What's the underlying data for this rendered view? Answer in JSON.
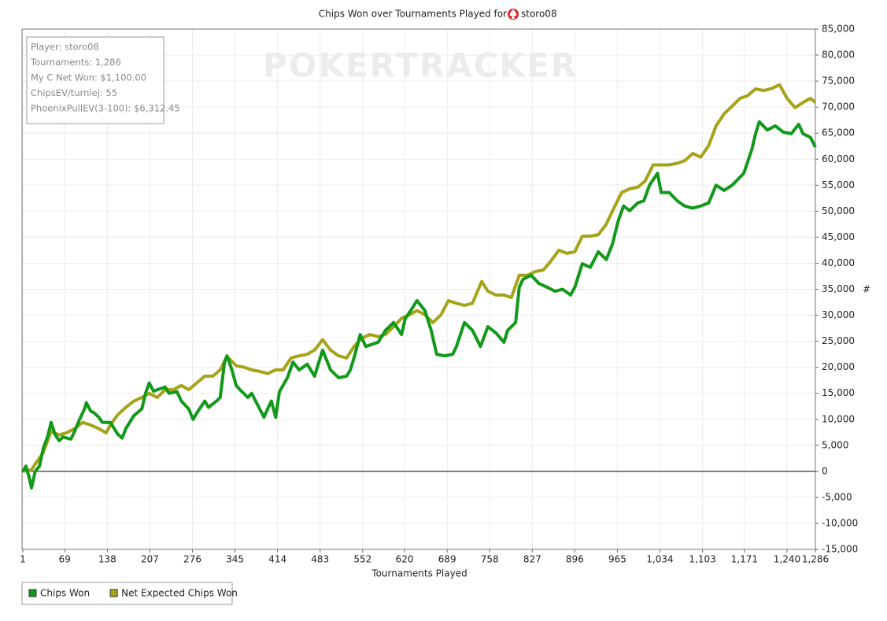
{
  "chart_data": {
    "type": "line",
    "title": "Chips Won over Tournaments Played for",
    "player": "storo08",
    "watermark": "POKERTRACKER",
    "info_lines": [
      "Player: storo08",
      "Tournaments: 1,286",
      "My C Net Won: $1,100.00",
      "ChipsEV/turniej: 55",
      "PhoenixPullEV(3-100): $6,312.45"
    ],
    "x_label": "Tournaments Played",
    "y_label": "#",
    "xlim": [
      1,
      1286
    ],
    "ylim": [
      -15000,
      85000
    ],
    "xticks": [
      1,
      69,
      138,
      207,
      276,
      345,
      414,
      483,
      552,
      620,
      689,
      758,
      827,
      896,
      965,
      {
        "value": 1034,
        "label": "1,034"
      },
      {
        "value": 1103,
        "label": "1,103"
      },
      {
        "value": 1171,
        "label": "1,171"
      },
      {
        "value": 1240,
        "label": "1,240"
      },
      {
        "value": 1286,
        "label": "1,286"
      }
    ],
    "yticks": [
      {
        "value": -15000,
        "label": "-15,000"
      },
      {
        "value": -10000,
        "label": "-10,000"
      },
      {
        "value": -5000,
        "label": "-5,000"
      },
      0,
      {
        "value": 5000,
        "label": "5,000"
      },
      {
        "value": 10000,
        "label": "10,000"
      },
      {
        "value": 15000,
        "label": "15,000"
      },
      {
        "value": 20000,
        "label": "20,000"
      },
      {
        "value": 25000,
        "label": "25,000"
      },
      {
        "value": 30000,
        "label": "30,000"
      },
      {
        "value": 35000,
        "label": "35,000"
      },
      {
        "value": 40000,
        "label": "40,000"
      },
      {
        "value": 45000,
        "label": "45,000"
      },
      {
        "value": 50000,
        "label": "50,000"
      },
      {
        "value": 55000,
        "label": "55,000"
      },
      {
        "value": 60000,
        "label": "60,000"
      },
      {
        "value": 65000,
        "label": "65,000"
      },
      {
        "value": 70000,
        "label": "70,000"
      },
      {
        "value": 75000,
        "label": "75,000"
      },
      {
        "value": 80000,
        "label": "80,000"
      },
      {
        "value": 85000,
        "label": "85,000"
      }
    ],
    "grid": true,
    "legend": "bottom-left",
    "series": [
      {
        "name": "Chips Won",
        "color": "#12991a",
        "x": [
          1,
          6,
          11,
          15,
          21,
          28,
          34,
          41,
          47,
          53,
          60,
          66,
          72,
          79,
          85,
          92,
          101,
          104,
          111,
          117,
          124,
          130,
          143,
          155,
          162,
          168,
          181,
          194,
          200,
          206,
          213,
          219,
          232,
          238,
          251,
          258,
          270,
          277,
          283,
          296,
          302,
          315,
          321,
          328,
          332,
          340,
          347,
          353,
          366,
          372,
          385,
          392,
          398,
          404,
          411,
          417,
          430,
          439,
          449,
          462,
          474,
          487,
          500,
          513,
          526,
          532,
          538,
          548,
          557,
          577,
          589,
          602,
          615,
          621,
          630,
          640,
          653,
          663,
          672,
          685,
          698,
          704,
          717,
          730,
          743,
          755,
          768,
          781,
          787,
          800,
          806,
          812,
          825,
          838,
          851,
          864,
          876,
          889,
          896,
          908,
          921,
          934,
          947,
          957,
          966,
          975,
          985,
          998,
          1008,
          1017,
          1030,
          1036,
          1049,
          1062,
          1074,
          1087,
          1100,
          1113,
          1125,
          1138,
          1151,
          1170,
          1183,
          1189,
          1195,
          1208,
          1221,
          1234,
          1247,
          1259,
          1266,
          1278,
          1286
        ],
        "values": [
          0,
          1000,
          -1000,
          -3200,
          0,
          1000,
          4400,
          6600,
          9400,
          7100,
          5900,
          6600,
          6400,
          6200,
          7700,
          9700,
          12000,
          13200,
          11600,
          11200,
          10400,
          9400,
          9400,
          7100,
          6400,
          8200,
          10700,
          12000,
          15000,
          17000,
          15400,
          15700,
          16200,
          15000,
          15300,
          13500,
          12000,
          10000,
          11200,
          13500,
          12300,
          13500,
          14200,
          21000,
          22200,
          19500,
          16500,
          15700,
          14200,
          15000,
          12000,
          10400,
          12000,
          13500,
          10400,
          15300,
          18000,
          21000,
          19500,
          20600,
          18300,
          23300,
          19500,
          18000,
          18300,
          19500,
          21800,
          26300,
          24000,
          24800,
          27100,
          28600,
          26300,
          29400,
          30900,
          32800,
          30900,
          27100,
          22500,
          22200,
          22500,
          24000,
          28600,
          27100,
          24000,
          27800,
          26600,
          24800,
          27100,
          28600,
          35400,
          36900,
          37700,
          36100,
          35400,
          34600,
          35000,
          33900,
          35400,
          39900,
          39200,
          42200,
          40700,
          43700,
          48000,
          51000,
          50100,
          51600,
          52000,
          55000,
          57300,
          53600,
          53600,
          52000,
          51000,
          50600,
          51000,
          51600,
          55000,
          54000,
          55000,
          57300,
          61900,
          64900,
          67200,
          65600,
          66400,
          65200,
          64900,
          66700,
          64900,
          64200,
          62300
        ]
      },
      {
        "name": "Net Expected Chips Won",
        "color": "#a6a31a",
        "x": [
          1,
          15,
          21,
          34,
          47,
          60,
          72,
          85,
          98,
          111,
          124,
          136,
          143,
          155,
          168,
          181,
          194,
          206,
          219,
          232,
          245,
          258,
          270,
          283,
          296,
          309,
          321,
          332,
          347,
          360,
          372,
          385,
          398,
          411,
          423,
          436,
          449,
          462,
          474,
          487,
          500,
          513,
          526,
          538,
          551,
          564,
          577,
          589,
          602,
          615,
          628,
          640,
          653,
          666,
          679,
          691,
          704,
          717,
          730,
          745,
          755,
          768,
          781,
          793,
          806,
          819,
          832,
          845,
          857,
          870,
          883,
          896,
          908,
          921,
          934,
          947,
          959,
          972,
          985,
          998,
          1010,
          1023,
          1036,
          1049,
          1062,
          1074,
          1087,
          1100,
          1113,
          1125,
          1138,
          1151,
          1164,
          1176,
          1189,
          1202,
          1215,
          1228,
          1240,
          1253,
          1266,
          1278,
          1286
        ],
        "values": [
          0,
          300,
          1400,
          3600,
          7700,
          7000,
          7400,
          8200,
          9400,
          8900,
          8200,
          7400,
          8900,
          10900,
          12300,
          13500,
          14200,
          15000,
          14200,
          15700,
          15700,
          16500,
          15700,
          17000,
          18300,
          18300,
          19500,
          22100,
          20300,
          20000,
          19500,
          19200,
          18800,
          19500,
          19500,
          21800,
          22200,
          22500,
          23300,
          25300,
          23300,
          22200,
          21800,
          24000,
          25600,
          26300,
          25900,
          26300,
          27800,
          29400,
          30100,
          30900,
          30100,
          28600,
          30100,
          32800,
          32300,
          31900,
          32300,
          36500,
          34600,
          33900,
          33900,
          33400,
          37700,
          37700,
          38400,
          38700,
          40400,
          42500,
          41900,
          42200,
          45200,
          45200,
          45500,
          47500,
          50500,
          53600,
          54300,
          54600,
          55800,
          58900,
          58900,
          58900,
          59200,
          59700,
          61100,
          60400,
          62600,
          66400,
          68700,
          70200,
          71700,
          72200,
          73500,
          73200,
          73600,
          74300,
          71700,
          69900,
          70900,
          71700,
          70900
        ]
      }
    ]
  }
}
